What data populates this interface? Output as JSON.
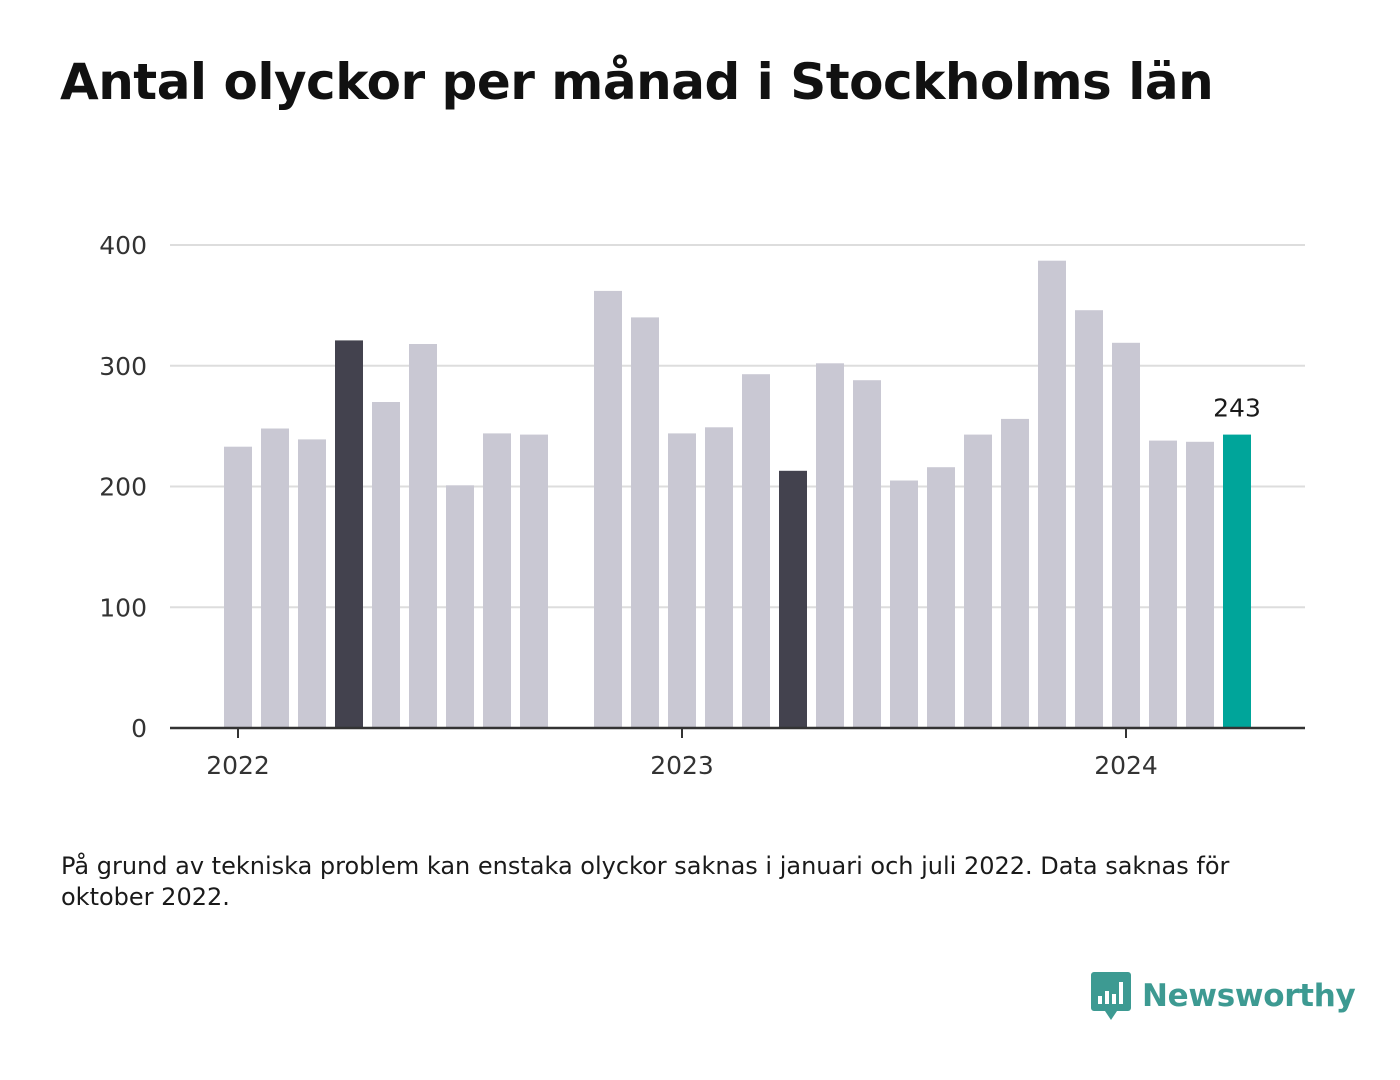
{
  "title": "Antal olyckor per månad i Stockholms län",
  "footnote": "På grund av tekniska problem kan enstaka olyckor saknas i januari och juli 2022. Data saknas för oktober 2022.",
  "brand": {
    "name": "Newsworthy",
    "icon": "newsworthy-logo-icon"
  },
  "colors": {
    "bar": "#c9c8d3",
    "highlight": "#43424e",
    "latest": "#00a59a",
    "grid": "#dddddd",
    "axis": "#333333",
    "brand": "#3d9a92"
  },
  "chart_data": {
    "type": "bar",
    "title": "Antal olyckor per månad i Stockholms län",
    "xlabel": "",
    "ylabel": "",
    "ylim": [
      0,
      400
    ],
    "yticks": [
      0,
      100,
      200,
      300,
      400
    ],
    "grid": true,
    "legend": "none",
    "x_tick_labels": [
      {
        "label": "2022",
        "at": "2022-01"
      },
      {
        "label": "2023",
        "at": "2023-01"
      },
      {
        "label": "2024",
        "at": "2024-01"
      }
    ],
    "categories": [
      "2022-01",
      "2022-02",
      "2022-03",
      "2022-04",
      "2022-05",
      "2022-06",
      "2022-07",
      "2022-08",
      "2022-09",
      "2022-10",
      "2022-11",
      "2022-12",
      "2023-01",
      "2023-02",
      "2023-03",
      "2023-04",
      "2023-05",
      "2023-06",
      "2023-07",
      "2023-08",
      "2023-09",
      "2023-10",
      "2023-11",
      "2023-12",
      "2024-01",
      "2024-02",
      "2024-03",
      "2024-04"
    ],
    "values": [
      233,
      248,
      239,
      321,
      270,
      318,
      201,
      244,
      243,
      null,
      362,
      340,
      244,
      249,
      293,
      213,
      302,
      288,
      205,
      216,
      243,
      256,
      387,
      346,
      319,
      238,
      237,
      243
    ],
    "highlighted": [
      "2022-04",
      "2023-04"
    ],
    "latest": "2024-04",
    "annotations": [
      {
        "category": "2024-04",
        "text": "243"
      }
    ]
  }
}
